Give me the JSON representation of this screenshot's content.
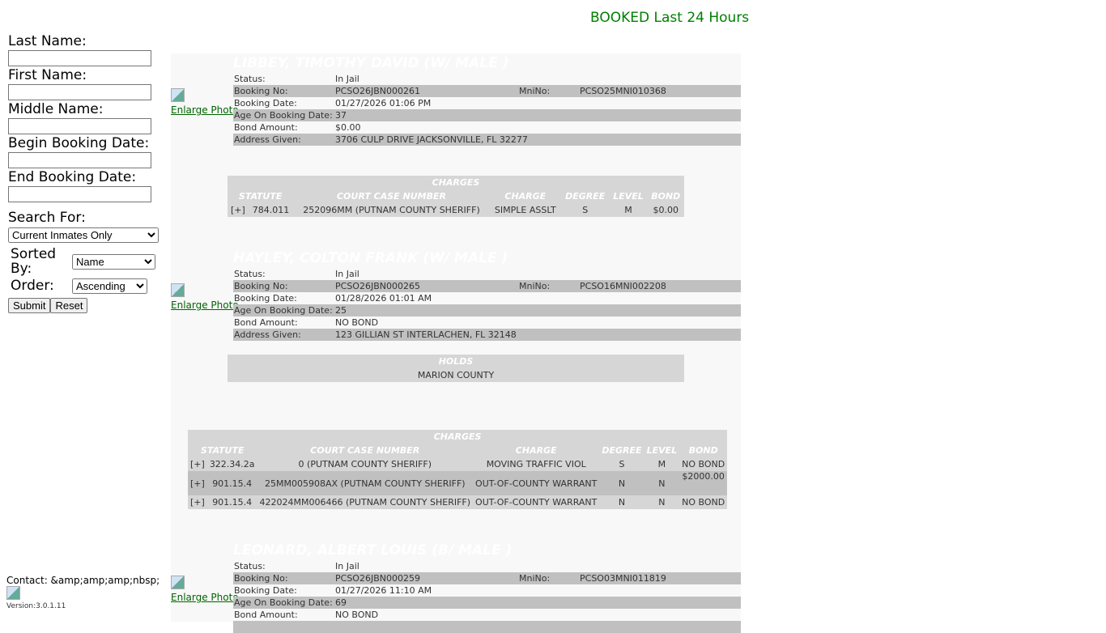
{
  "header": {
    "title": "BOOKED Last 24 Hours"
  },
  "search": {
    "last_name": "Last Name:",
    "first_name": "First Name:",
    "middle_name": "Middle Name:",
    "begin_date": "Begin Booking Date:",
    "end_date": "End Booking Date:",
    "search_for": "Search For:",
    "search_for_value": "Current Inmates Only",
    "sorted_by": "Sorted By:",
    "sorted_by_value": "Name",
    "order": "Order:",
    "order_value": "Ascending",
    "submit": "Submit",
    "reset": "Reset"
  },
  "footer": {
    "contact": "Contact: &amp;amp;amp;nbsp;",
    "version": "Version:3.0.1.11"
  },
  "labels": {
    "status": "Status:",
    "booking_no": "Booking No:",
    "mnino": "MniNo:",
    "booking_date": "Booking Date:",
    "age": "Age On Booking Date:",
    "bond": "Bond Amount:",
    "address": "Address Given:",
    "enlarge": "Enlarge Photo",
    "charges": "CHARGES",
    "holds": "HOLDS",
    "statute": "STATUTE",
    "case": "COURT CASE NUMBER",
    "charge": "CHARGE",
    "degree": "DEGREE",
    "level": "LEVEL",
    "bondcol": "BOND",
    "expand": "[+]"
  },
  "records": [
    {
      "name": "LIBBEY, TIMOTHY DAVID  (W/ MALE )",
      "status": "In Jail",
      "booking_no": "PCSO26JBN000261",
      "mnino": "PCSO25MNI010368",
      "booking_date": "01/27/2026 01:06 PM",
      "age": "37",
      "bond": "$0.00",
      "address": "3706 CULP DRIVE JACKSONVILLE, FL 32277",
      "charges": [
        {
          "statute": "784.011",
          "case": "252096MM (PUTNAM COUNTY SHERIFF)",
          "charge": "SIMPLE ASSLT",
          "degree": "S",
          "level": "M",
          "bond": "$0.00"
        }
      ]
    },
    {
      "name": "HAYLEY, COLTON FRANK  (W/ MALE )",
      "status": "In Jail",
      "booking_no": "PCSO26JBN000265",
      "mnino": "PCSO16MNI002208",
      "booking_date": "01/28/2026 01:01 AM",
      "age": "25",
      "bond": "NO BOND",
      "address": "123 GILLIAN ST INTERLACHEN, FL 32148",
      "holds": [
        "MARION COUNTY"
      ],
      "charges": [
        {
          "statute": "322.34.2a",
          "case": "0 (PUTNAM COUNTY SHERIFF)",
          "charge": "MOVING TRAFFIC VIOL",
          "degree": "S",
          "level": "M",
          "bond": "NO BOND"
        },
        {
          "statute": "901.15.4",
          "case": "25MM005908AX (PUTNAM COUNTY SHERIFF)",
          "charge": "OUT-OF-COUNTY WARRANT",
          "degree": "N",
          "level": "N",
          "bond": "$2000.00"
        },
        {
          "statute": "901.15.4",
          "case": "422024MM006466 (PUTNAM COUNTY SHERIFF)",
          "charge": "OUT-OF-COUNTY WARRANT",
          "degree": "N",
          "level": "N",
          "bond": "NO BOND"
        }
      ]
    },
    {
      "name": "LEONARD, ALBERT LOUIS  (B/ MALE )",
      "status": "In Jail",
      "booking_no": "PCSO26JBN000259",
      "mnino": "PCSO03MNI011819",
      "booking_date": "01/27/2026 11:10 AM",
      "age": "69",
      "bond": "NO BOND"
    }
  ]
}
